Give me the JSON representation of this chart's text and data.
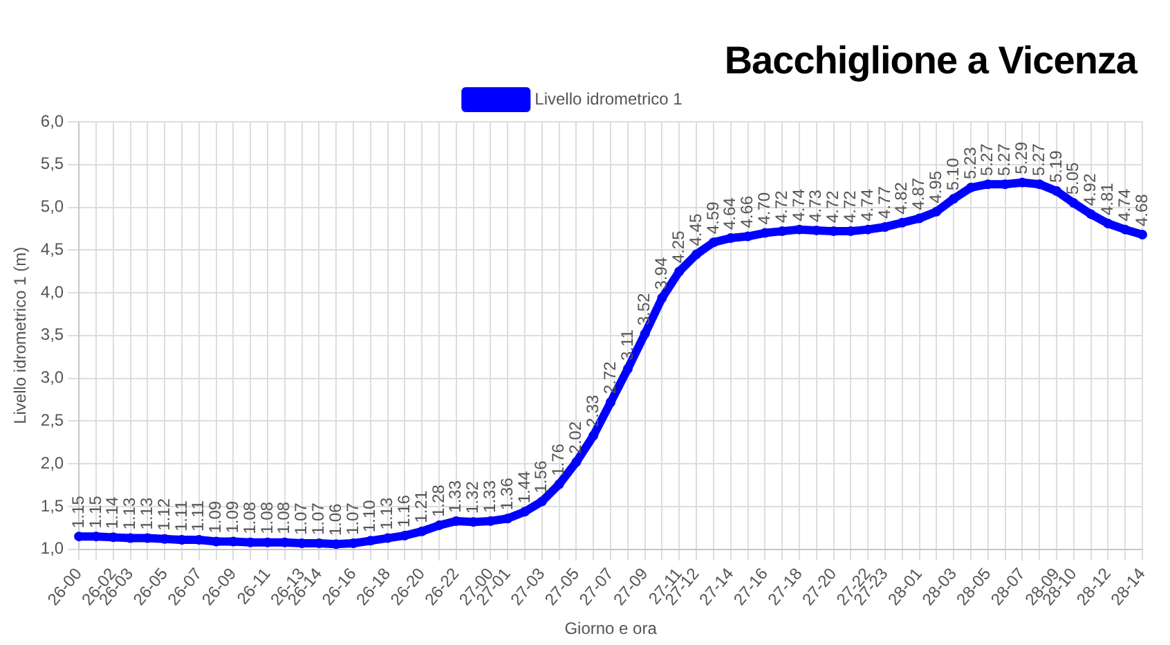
{
  "chart_data": {
    "type": "line",
    "title": "Bacchiglione a Vicenza",
    "xlabel": "Giorno e ora",
    "ylabel": "Livello idrometrico 1 (m)",
    "categories": [
      "26-00",
      null,
      "26-02",
      "26-03",
      null,
      "26-05",
      null,
      "26-07",
      null,
      "26-09",
      null,
      "26-11",
      null,
      "26-13",
      "26-14",
      null,
      "26-16",
      null,
      "26-18",
      null,
      "26-20",
      null,
      "26-22",
      null,
      "27-00",
      "27-01",
      null,
      "27-03",
      null,
      "27-05",
      null,
      "27-07",
      null,
      "27-09",
      null,
      "27-11",
      "27-12",
      null,
      "27-14",
      null,
      "27-16",
      null,
      "27-18",
      null,
      "27-20",
      null,
      "27-22",
      "27-23",
      null,
      "28-01",
      null,
      "28-03",
      null,
      "28-05",
      null,
      "28-07",
      null,
      "28-09",
      "28-10",
      null,
      "28-12",
      null,
      "28-14"
    ],
    "series": [
      {
        "name": "Livello idrometrico 1",
        "color": "#0000ff",
        "values": [
          1.15,
          1.15,
          1.14,
          1.13,
          1.13,
          1.12,
          1.11,
          1.11,
          1.09,
          1.09,
          1.08,
          1.08,
          1.08,
          1.07,
          1.07,
          1.06,
          1.07,
          1.1,
          1.13,
          1.16,
          1.21,
          1.28,
          1.33,
          1.32,
          1.33,
          1.36,
          1.44,
          1.56,
          1.76,
          2.02,
          2.33,
          2.72,
          3.11,
          3.52,
          3.94,
          4.25,
          4.45,
          4.59,
          4.64,
          4.66,
          4.7,
          4.72,
          4.74,
          4.73,
          4.72,
          4.72,
          4.74,
          4.77,
          4.82,
          4.87,
          4.95,
          5.1,
          5.23,
          5.27,
          5.27,
          5.29,
          5.27,
          5.19,
          5.05,
          4.92,
          4.81,
          4.74,
          4.68
        ]
      }
    ],
    "value_labels": [
      "1.15",
      "1.15",
      "1.14",
      "1.13",
      "1.13",
      "1.12",
      "1.11",
      "1.11",
      "1.09",
      "1.09",
      "1.08",
      "1.08",
      "1.08",
      "1.07",
      "1.07",
      "1.06",
      "1.07",
      "1.10",
      "1.13",
      "1.16",
      "1.21",
      "1.28",
      "1.33",
      "1.32",
      "1.33",
      "1.36",
      "1.44",
      "1.56",
      "1.76",
      "2.02",
      "2.33",
      "2.72",
      "3.11",
      "3.52",
      "3.94",
      "4.25",
      "4.45",
      "4.59",
      "4.64",
      "4.66",
      "4.70",
      "4.72",
      "4.74",
      "4.73",
      "4.72",
      "4.72",
      "4.74",
      "4.77",
      "4.82",
      "4.87",
      "4.95",
      "5.10",
      "5.23",
      "5.27",
      "5.27",
      "5.29",
      "5.27",
      "5.19",
      "5.05",
      "4.92",
      "4.81",
      "4.74",
      "4.68"
    ],
    "ylim": [
      1.0,
      6.0
    ],
    "yticks": [
      {
        "value": 1.0,
        "label": "1,0"
      },
      {
        "value": 1.5,
        "label": "1,5"
      },
      {
        "value": 2.0,
        "label": "2,0"
      },
      {
        "value": 2.5,
        "label": "2,5"
      },
      {
        "value": 3.0,
        "label": "3,0"
      },
      {
        "value": 3.5,
        "label": "3,5"
      },
      {
        "value": 4.0,
        "label": "4,0"
      },
      {
        "value": 4.5,
        "label": "4,5"
      },
      {
        "value": 5.0,
        "label": "5,0"
      },
      {
        "value": 5.5,
        "label": "5,5"
      },
      {
        "value": 6.0,
        "label": "6,0"
      }
    ],
    "grid": true,
    "legend": "top",
    "marker": "circle",
    "line_style": "solid"
  }
}
